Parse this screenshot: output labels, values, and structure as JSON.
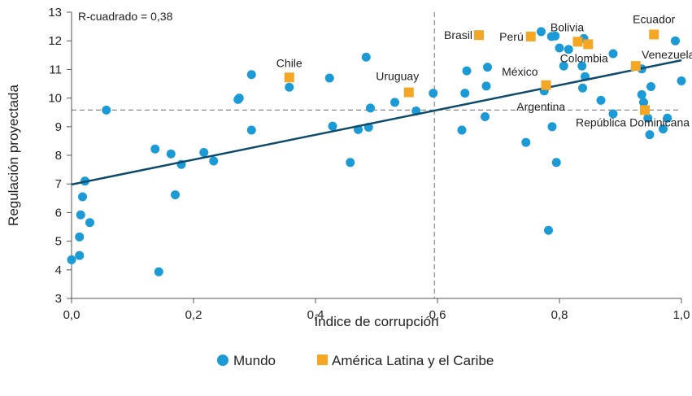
{
  "chart_data": {
    "type": "scatter",
    "xlabel": "Índice de corrupción",
    "ylabel": "Regulación proyectada",
    "xlim": [
      0,
      1
    ],
    "ylim": [
      3,
      13
    ],
    "x_ticks": [
      "0,0",
      "0,2",
      "0,4",
      "0,6",
      "0,8",
      "1,0"
    ],
    "y_ticks": [
      "3",
      "4",
      "5",
      "6",
      "7",
      "8",
      "9",
      "10",
      "11",
      "12",
      "13"
    ],
    "annotation": "R-cuadrado =  0,38",
    "trendline": {
      "x": [
        0,
        1
      ],
      "y": [
        6.98,
        11.32
      ],
      "color": "#0d4a6b"
    },
    "reference_lines": {
      "x": 0.595,
      "y": 9.58,
      "color": "#888888",
      "style": "dashed"
    },
    "series": [
      {
        "name": "Mundo",
        "color": "#1b9ad6",
        "marker": "circle",
        "points": [
          [
            0.0,
            4.35
          ],
          [
            0.013,
            4.5
          ],
          [
            0.013,
            5.15
          ],
          [
            0.015,
            5.92
          ],
          [
            0.03,
            5.65
          ],
          [
            0.018,
            6.55
          ],
          [
            0.022,
            7.1
          ],
          [
            0.057,
            9.58
          ],
          [
            0.137,
            8.22
          ],
          [
            0.143,
            3.93
          ],
          [
            0.163,
            8.05
          ],
          [
            0.17,
            6.62
          ],
          [
            0.18,
            7.68
          ],
          [
            0.217,
            8.1
          ],
          [
            0.233,
            7.8
          ],
          [
            0.273,
            9.95
          ],
          [
            0.275,
            10.0
          ],
          [
            0.295,
            10.82
          ],
          [
            0.295,
            8.88
          ],
          [
            0.357,
            10.38
          ],
          [
            0.423,
            10.7
          ],
          [
            0.428,
            9.02
          ],
          [
            0.457,
            7.75
          ],
          [
            0.47,
            8.9
          ],
          [
            0.483,
            11.43
          ],
          [
            0.487,
            8.98
          ],
          [
            0.49,
            9.65
          ],
          [
            0.53,
            9.85
          ],
          [
            0.565,
            9.55
          ],
          [
            0.593,
            10.17
          ],
          [
            0.64,
            8.88
          ],
          [
            0.645,
            10.17
          ],
          [
            0.648,
            10.95
          ],
          [
            0.678,
            9.35
          ],
          [
            0.68,
            10.42
          ],
          [
            0.682,
            11.08
          ],
          [
            0.745,
            8.45
          ],
          [
            0.77,
            12.32
          ],
          [
            0.775,
            10.25
          ],
          [
            0.782,
            5.38
          ],
          [
            0.787,
            12.15
          ],
          [
            0.788,
            9.0
          ],
          [
            0.793,
            12.17
          ],
          [
            0.795,
            7.75
          ],
          [
            0.8,
            11.75
          ],
          [
            0.807,
            11.12
          ],
          [
            0.815,
            11.7
          ],
          [
            0.837,
            11.12
          ],
          [
            0.838,
            10.35
          ],
          [
            0.84,
            12.08
          ],
          [
            0.842,
            10.75
          ],
          [
            0.868,
            9.92
          ],
          [
            0.888,
            11.55
          ],
          [
            0.888,
            9.45
          ],
          [
            0.935,
            11.02
          ],
          [
            0.935,
            10.12
          ],
          [
            0.938,
            9.85
          ],
          [
            0.945,
            9.3
          ],
          [
            0.948,
            8.72
          ],
          [
            0.95,
            10.4
          ],
          [
            0.97,
            8.92
          ],
          [
            0.977,
            9.3
          ],
          [
            0.99,
            12.0
          ],
          [
            1.0,
            10.6
          ]
        ]
      },
      {
        "name": "América Latina y el Caribe",
        "color": "#f5a623",
        "marker": "square",
        "points": [
          {
            "x": 0.357,
            "y": 10.72,
            "label": "Chile"
          },
          {
            "x": 0.553,
            "y": 10.2,
            "label": "Uruguay"
          },
          {
            "x": 0.668,
            "y": 12.2,
            "label": "Brasil"
          },
          {
            "x": 0.753,
            "y": 12.15,
            "label": "Perú"
          },
          {
            "x": 0.778,
            "y": 10.45,
            "label": "México"
          },
          {
            "x": 0.83,
            "y": 11.97,
            "label": "Bolivia"
          },
          {
            "x": 0.847,
            "y": 11.88,
            "label": "Colombia"
          },
          {
            "x": 0.925,
            "y": 11.12,
            "label": "Venezuela"
          },
          {
            "x": 0.94,
            "y": 9.58,
            "label": "República Dominicana"
          },
          {
            "x": 0.955,
            "y": 12.22,
            "label": "Ecuador"
          }
        ]
      }
    ],
    "extra_labels": [
      {
        "text": "Argentina",
        "x": 0.775,
        "y": 10.25
      }
    ],
    "legend": {
      "position": "bottom"
    }
  }
}
